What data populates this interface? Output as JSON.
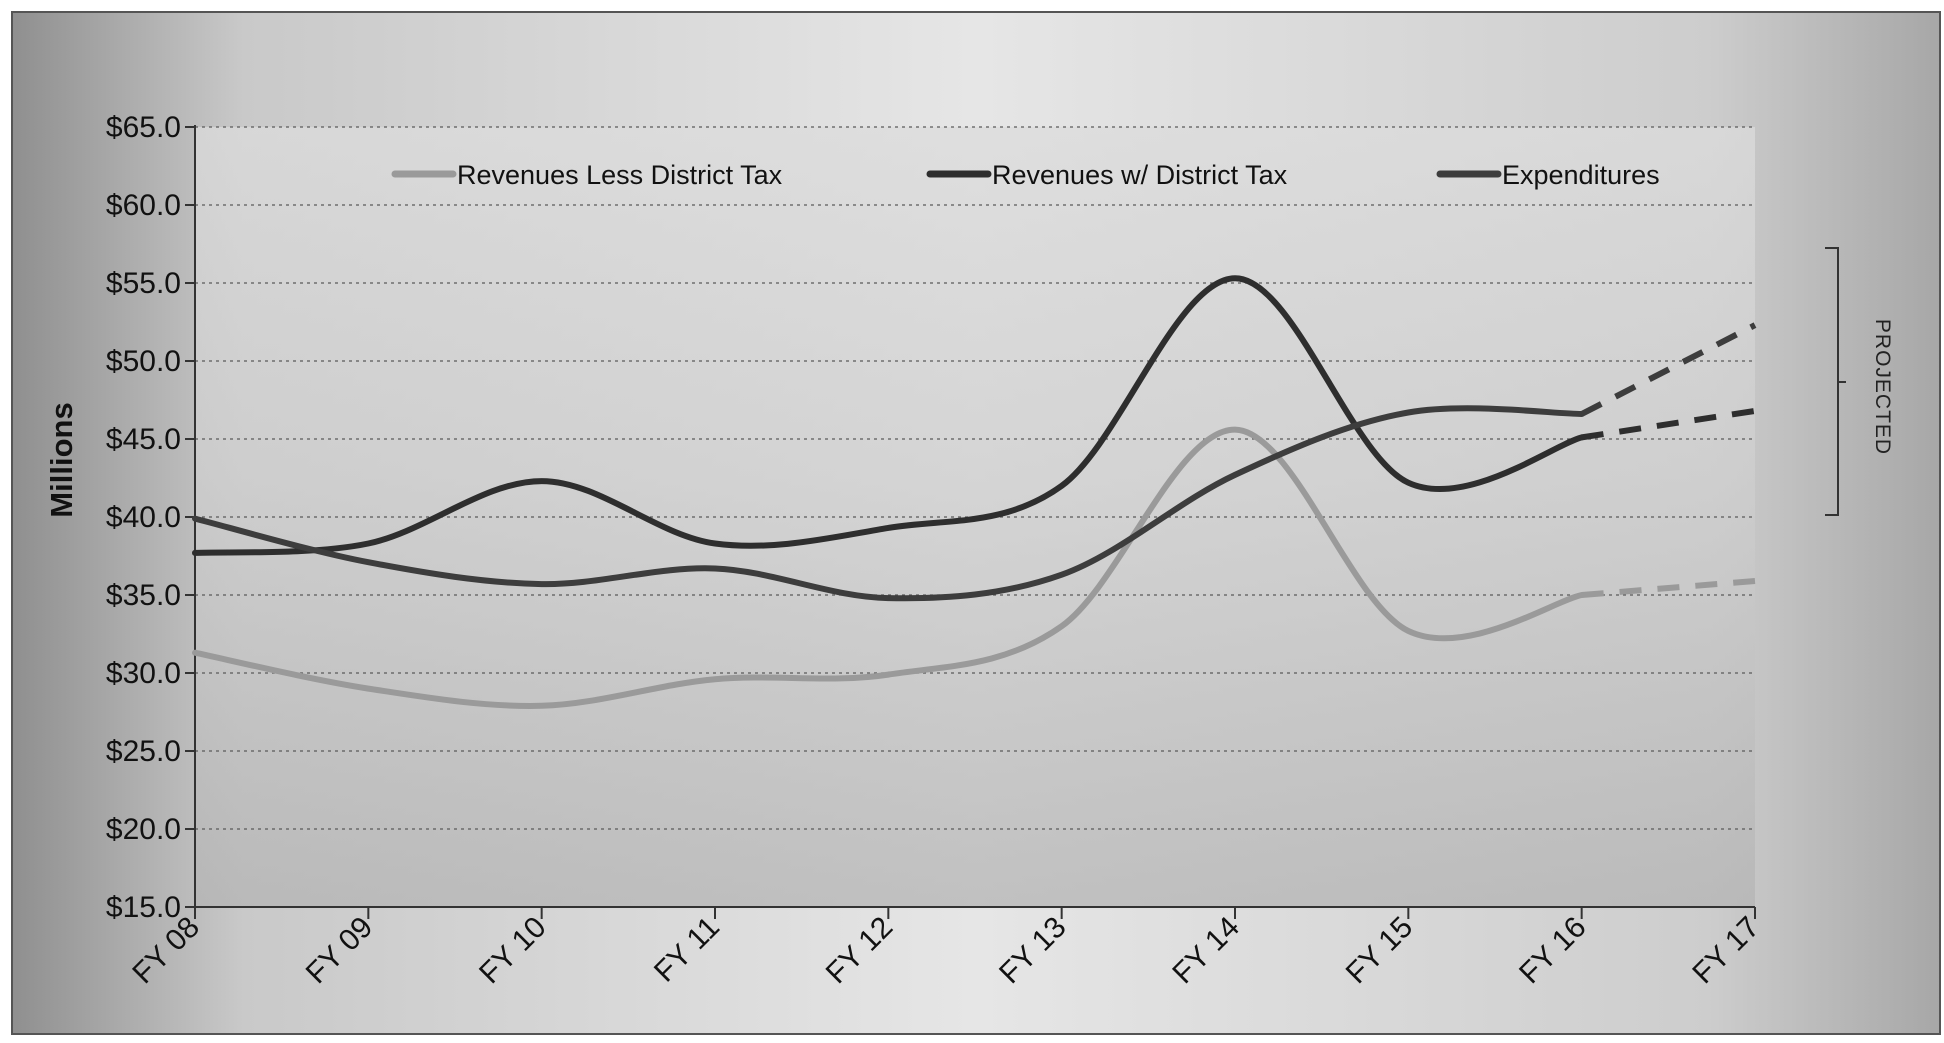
{
  "chart_data": {
    "type": "line",
    "title": "",
    "xlabel": "",
    "ylabel": "Millions",
    "categories": [
      "FY 08",
      "FY 09",
      "FY 10",
      "FY 11",
      "FY 12",
      "FY 13",
      "FY 14",
      "FY 15",
      "FY 16",
      "FY 17"
    ],
    "y_tick_labels": [
      "$15.0",
      "$20.0",
      "$25.0",
      "$30.0",
      "$35.0",
      "$40.0",
      "$45.0",
      "$50.0",
      "$55.0",
      "$60.0",
      "$65.0"
    ],
    "ylim": [
      15,
      65
    ],
    "y_tick_step": 5,
    "y_tick_format": "$0.0",
    "grid": "horizontal dotted",
    "legend_position": "top",
    "projected_label": "PROJECTED",
    "projected_range": [
      "FY 16",
      "FY 17"
    ],
    "series": [
      {
        "name": "Revenues Less District Tax",
        "values": [
          31.3,
          29.0,
          27.9,
          29.6,
          29.9,
          33.0,
          45.6,
          32.7,
          35.0,
          35.9
        ],
        "color": "#9a9a9a",
        "projected_from_index": 8
      },
      {
        "name": "Revenues w/ District Tax",
        "values": [
          37.7,
          38.3,
          42.3,
          38.3,
          39.3,
          42.0,
          55.3,
          42.2,
          45.1,
          46.8
        ],
        "color": "#2e2e2e",
        "projected_from_index": 8
      },
      {
        "name": "Expenditures",
        "values": [
          39.9,
          37.1,
          35.7,
          36.7,
          34.8,
          36.3,
          42.7,
          46.7,
          46.6,
          52.3
        ],
        "color": "#3d3d3d",
        "projected_from_index": 8
      }
    ]
  }
}
